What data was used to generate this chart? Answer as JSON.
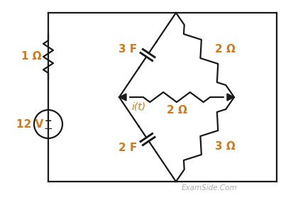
{
  "bg_color": "#ffffff",
  "line_color": "#1a1a1a",
  "label_color": "#d4781a",
  "labels": {
    "R1": "1 Ω",
    "V1": "12 V",
    "C1": "3 F",
    "C2": "2 F",
    "R2": "2 Ω",
    "R3": "2 Ω",
    "R4": "3 Ω",
    "it": "i(t)",
    "watermark": "ExamSide.Com"
  },
  "figsize": [
    4.2,
    2.82
  ],
  "dpi": 100
}
